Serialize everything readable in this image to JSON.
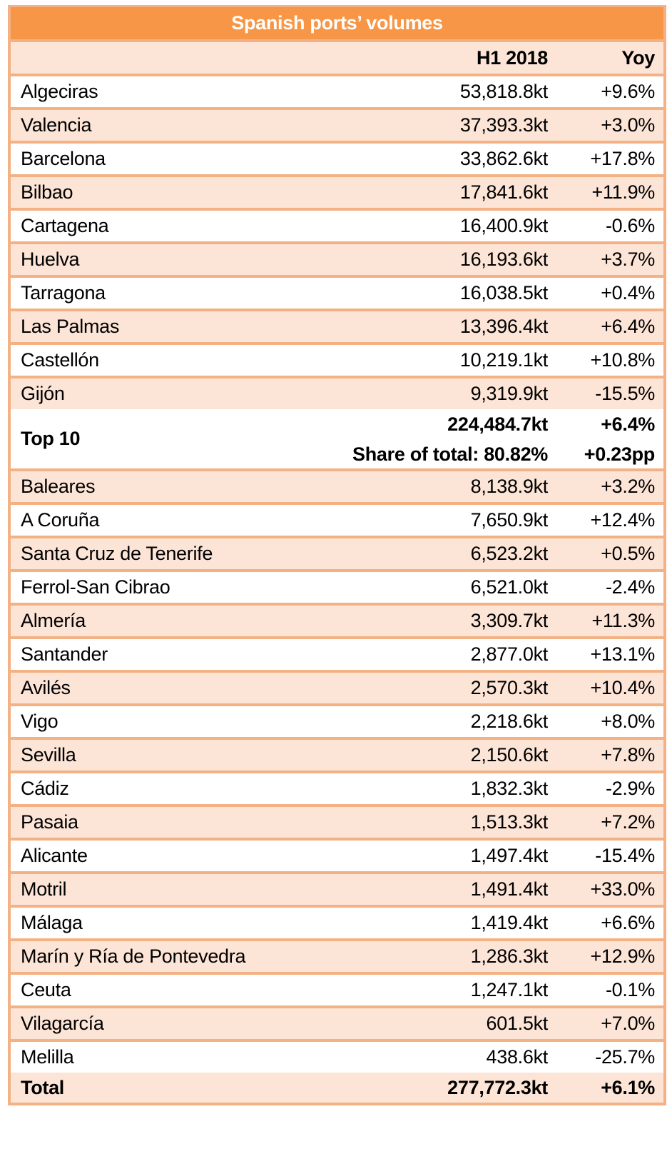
{
  "table": {
    "title": "Spanish ports’ volumes",
    "headers": {
      "name": "",
      "volume": "H1 2018",
      "yoy": "Yoy"
    },
    "top10_rows": [
      {
        "name": "Algeciras",
        "volume": "53,818.8kt",
        "yoy": "+9.6%"
      },
      {
        "name": "Valencia",
        "volume": "37,393.3kt",
        "yoy": "+3.0%"
      },
      {
        "name": "Barcelona",
        "volume": "33,862.6kt",
        "yoy": "+17.8%"
      },
      {
        "name": "Bilbao",
        "volume": "17,841.6kt",
        "yoy": "+11.9%"
      },
      {
        "name": "Cartagena",
        "volume": "16,400.9kt",
        "yoy": "-0.6%"
      },
      {
        "name": "Huelva",
        "volume": "16,193.6kt",
        "yoy": "+3.7%"
      },
      {
        "name": "Tarragona",
        "volume": "16,038.5kt",
        "yoy": "+0.4%"
      },
      {
        "name": "Las Palmas",
        "volume": "13,396.4kt",
        "yoy": "+6.4%"
      },
      {
        "name": "Castellón",
        "volume": "10,219.1kt",
        "yoy": "+10.8%"
      },
      {
        "name": "Gijón",
        "volume": "9,319.9kt",
        "yoy": "-15.5%"
      }
    ],
    "top10_summary": {
      "label": "Top 10",
      "volume": "224,484.7kt",
      "yoy": "+6.4%",
      "share": "Share of total: 80.82%",
      "share_change": "+0.23pp"
    },
    "other_rows": [
      {
        "name": "Baleares",
        "volume": "8,138.9kt",
        "yoy": "+3.2%"
      },
      {
        "name": "A Coruña",
        "volume": "7,650.9kt",
        "yoy": "+12.4%"
      },
      {
        "name": "Santa Cruz de Tenerife",
        "volume": "6,523.2kt",
        "yoy": "+0.5%"
      },
      {
        "name": "Ferrol-San Cibrao",
        "volume": "6,521.0kt",
        "yoy": "-2.4%"
      },
      {
        "name": "Almería",
        "volume": "3,309.7kt",
        "yoy": "+11.3%"
      },
      {
        "name": "Santander",
        "volume": "2,877.0kt",
        "yoy": "+13.1%"
      },
      {
        "name": "Avilés",
        "volume": "2,570.3kt",
        "yoy": "+10.4%"
      },
      {
        "name": "Vigo",
        "volume": "2,218.6kt",
        "yoy": "+8.0%"
      },
      {
        "name": "Sevilla",
        "volume": "2,150.6kt",
        "yoy": "+7.8%"
      },
      {
        "name": "Cádiz",
        "volume": "1,832.3kt",
        "yoy": "-2.9%"
      },
      {
        "name": "Pasaia",
        "volume": "1,513.3kt",
        "yoy": "+7.2%"
      },
      {
        "name": "Alicante",
        "volume": "1,497.4kt",
        "yoy": "-15.4%"
      },
      {
        "name": "Motril",
        "volume": "1,491.4kt",
        "yoy": "+33.0%"
      },
      {
        "name": "Málaga",
        "volume": "1,419.4kt",
        "yoy": "+6.6%"
      },
      {
        "name": "Marín y Ría de Pontevedra",
        "volume": "1,286.3kt",
        "yoy": "+12.9%"
      },
      {
        "name": "Ceuta",
        "volume": "1,247.1kt",
        "yoy": "-0.1%"
      },
      {
        "name": "Vilagarcía",
        "volume": "601.5kt",
        "yoy": "+7.0%"
      },
      {
        "name": "Melilla",
        "volume": "438.6kt",
        "yoy": "-25.7%"
      }
    ],
    "total": {
      "label": "Total",
      "volume": "277,772.3kt",
      "yoy": "+6.1%"
    }
  },
  "colors": {
    "title_bg": "#F79646",
    "border": "#F4B183",
    "shade": "#FCE4D6",
    "white": "#FFFFFF"
  }
}
